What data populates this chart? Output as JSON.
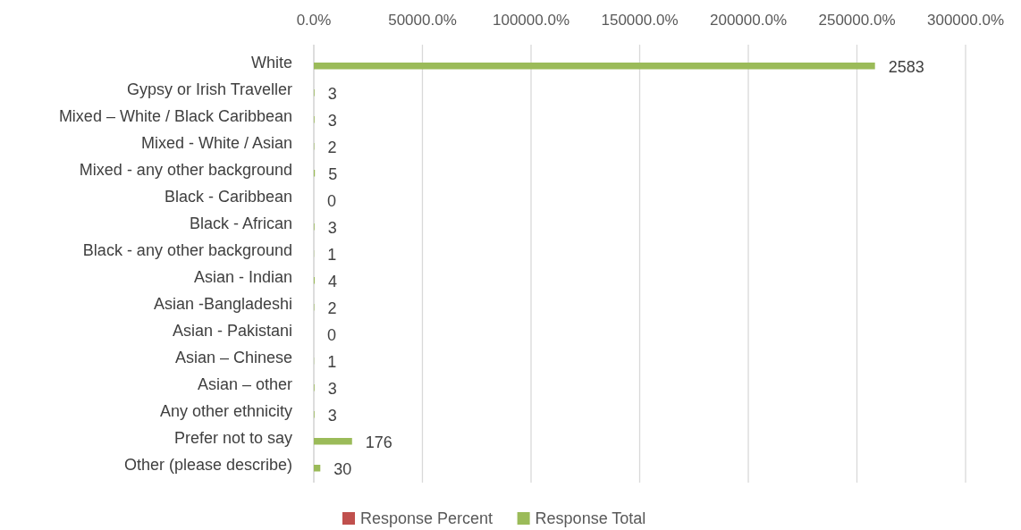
{
  "chart_data": {
    "type": "bar",
    "orientation": "horizontal",
    "categories": [
      "White",
      "Gypsy or Irish Traveller",
      "Mixed – White / Black Caribbean",
      "Mixed - White / Asian",
      "Mixed - any other background",
      "Black - Caribbean",
      "Black - African",
      "Black - any other background",
      "Asian - Indian",
      "Asian -Bangladeshi",
      "Asian - Pakistani",
      "Asian – Chinese",
      "Asian – other",
      "Any other ethnicity",
      "Prefer not to say",
      "Other (please describe)"
    ],
    "series": [
      {
        "name": "Response Percent",
        "color": "#c0504d",
        "values": [
          null,
          null,
          null,
          null,
          null,
          null,
          null,
          null,
          null,
          null,
          null,
          null,
          null,
          null,
          null,
          null
        ]
      },
      {
        "name": "Response Total",
        "color": "#9bbb59",
        "values": [
          2583,
          3,
          3,
          2,
          5,
          0,
          3,
          1,
          4,
          2,
          0,
          1,
          3,
          3,
          176,
          30
        ]
      }
    ],
    "xlim": [
      0,
      3000
    ],
    "xticks": [
      {
        "value": 0,
        "label": "0.0%"
      },
      {
        "value": 500,
        "label": "50000.0%"
      },
      {
        "value": 1000,
        "label": "100000.0%"
      },
      {
        "value": 1500,
        "label": "150000.0%"
      },
      {
        "value": 2000,
        "label": "200000.0%"
      },
      {
        "value": 2500,
        "label": "250000.0%"
      },
      {
        "value": 3000,
        "label": "300000.0%"
      }
    ],
    "grid": "x",
    "legend": "bottom",
    "data_labels": true
  }
}
